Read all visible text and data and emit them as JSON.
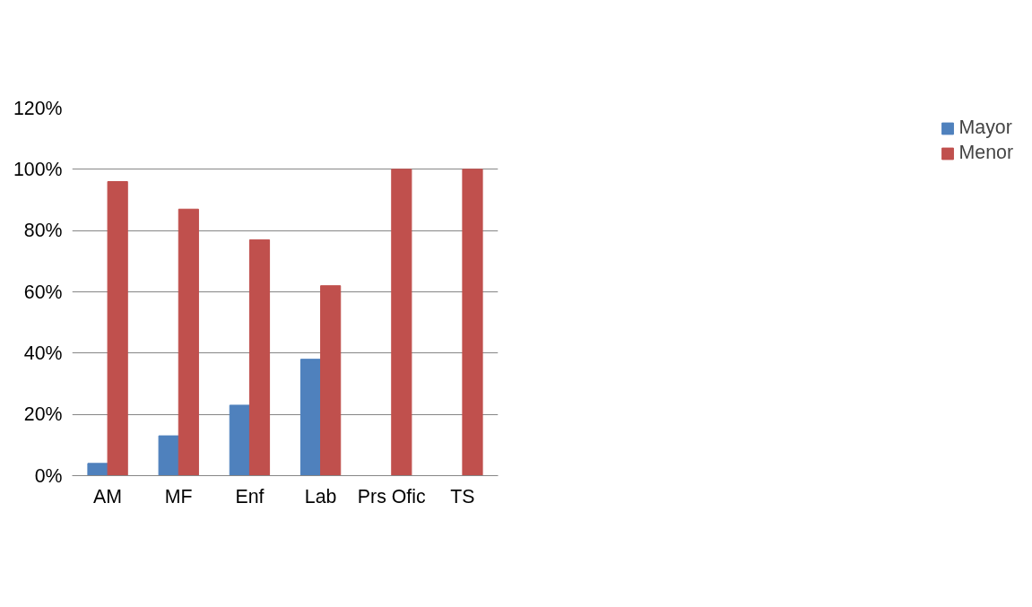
{
  "chart_data": {
    "type": "bar",
    "categories": [
      "AM",
      "MF",
      "Enf",
      "Lab",
      "Prs Ofic",
      "TS"
    ],
    "series": [
      {
        "name": "Mayor",
        "color": "#4f81bd",
        "values": [
          4,
          13,
          23,
          38,
          0,
          0
        ]
      },
      {
        "name": "Menor",
        "color": "#c0504d",
        "values": [
          96,
          87,
          77,
          62,
          100,
          100
        ]
      }
    ],
    "ylim": [
      0,
      120
    ],
    "yticks": [
      {
        "value": 0,
        "label": "0%"
      },
      {
        "value": 20,
        "label": "20%"
      },
      {
        "value": 40,
        "label": "40%"
      },
      {
        "value": 60,
        "label": "60%"
      },
      {
        "value": 80,
        "label": "80%"
      },
      {
        "value": 100,
        "label": "100%"
      },
      {
        "value": 120,
        "label": "120%"
      }
    ],
    "grid": "y",
    "legend": "right"
  }
}
